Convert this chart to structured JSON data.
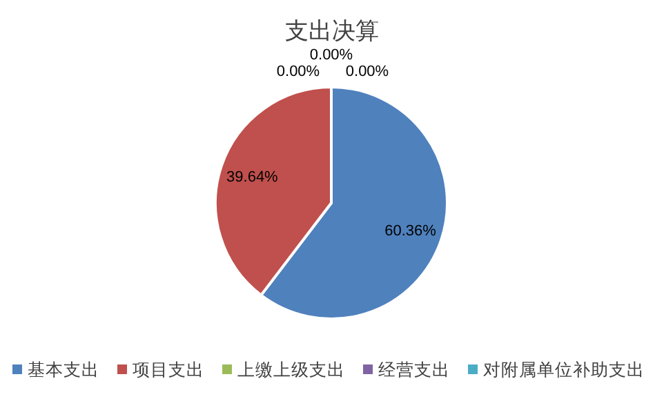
{
  "chart_data": {
    "type": "pie",
    "title": "支出决算",
    "categories": [
      "基本支出",
      "项目支出",
      "上缴上级支出",
      "经营支出",
      "对附属单位补助支出"
    ],
    "values": [
      60.36,
      39.64,
      0,
      0,
      0
    ],
    "value_labels": [
      "60.36%",
      "39.64%",
      "0.00%",
      "0.00%",
      "0.00%"
    ],
    "colors": [
      "#4f81bd",
      "#c0504d",
      "#9bbb59",
      "#8064a2",
      "#4bacc6"
    ],
    "legend": "bottom"
  }
}
